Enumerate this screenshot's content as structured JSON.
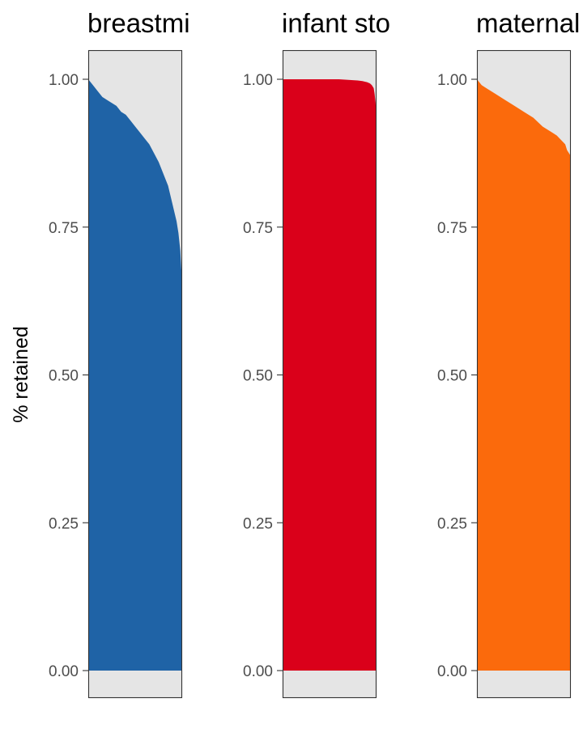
{
  "chart_data": {
    "type": "area",
    "ylabel": "% retained",
    "ylim": [
      0,
      1.05
    ],
    "grid": false,
    "legend": "none",
    "panel_background": "#e5e5e5",
    "panels": [
      {
        "title": "breastmi",
        "color": "#1f63a6",
        "x": [
          0,
          0.05,
          0.1,
          0.15,
          0.2,
          0.25,
          0.3,
          0.35,
          0.4,
          0.45,
          0.5,
          0.55,
          0.6,
          0.65,
          0.7,
          0.75,
          0.8,
          0.85,
          0.88,
          0.91,
          0.94,
          0.96,
          0.98,
          0.99,
          1.0
        ],
        "y": [
          1.0,
          0.99,
          0.98,
          0.97,
          0.965,
          0.96,
          0.955,
          0.945,
          0.94,
          0.93,
          0.92,
          0.91,
          0.9,
          0.89,
          0.875,
          0.86,
          0.84,
          0.82,
          0.8,
          0.78,
          0.76,
          0.74,
          0.71,
          0.68,
          0.66
        ]
      },
      {
        "title": "infant sto",
        "color": "#da001a",
        "x": [
          0,
          0.1,
          0.2,
          0.3,
          0.4,
          0.5,
          0.6,
          0.7,
          0.8,
          0.85,
          0.9,
          0.93,
          0.95,
          0.97,
          0.98,
          0.99,
          1.0
        ],
        "y": [
          1.0,
          1.0,
          1.0,
          1.0,
          1.0,
          1.0,
          1.0,
          0.999,
          0.998,
          0.997,
          0.995,
          0.993,
          0.99,
          0.985,
          0.975,
          0.96,
          0.93
        ]
      },
      {
        "title": "maternal",
        "color": "#fb6a0c",
        "x": [
          0,
          0.05,
          0.1,
          0.15,
          0.2,
          0.3,
          0.4,
          0.5,
          0.6,
          0.7,
          0.75,
          0.8,
          0.85,
          0.88,
          0.91,
          0.94,
          0.96,
          0.98,
          1.0
        ],
        "y": [
          1.0,
          0.99,
          0.985,
          0.98,
          0.975,
          0.965,
          0.955,
          0.945,
          0.935,
          0.92,
          0.915,
          0.91,
          0.905,
          0.9,
          0.895,
          0.89,
          0.88,
          0.875,
          0.87
        ]
      }
    ],
    "yticks": [
      {
        "value": 0.0,
        "label": "0.00"
      },
      {
        "value": 0.25,
        "label": "0.25"
      },
      {
        "value": 0.5,
        "label": "0.50"
      },
      {
        "value": 0.75,
        "label": "0.75"
      },
      {
        "value": 1.0,
        "label": "1.00"
      }
    ]
  }
}
